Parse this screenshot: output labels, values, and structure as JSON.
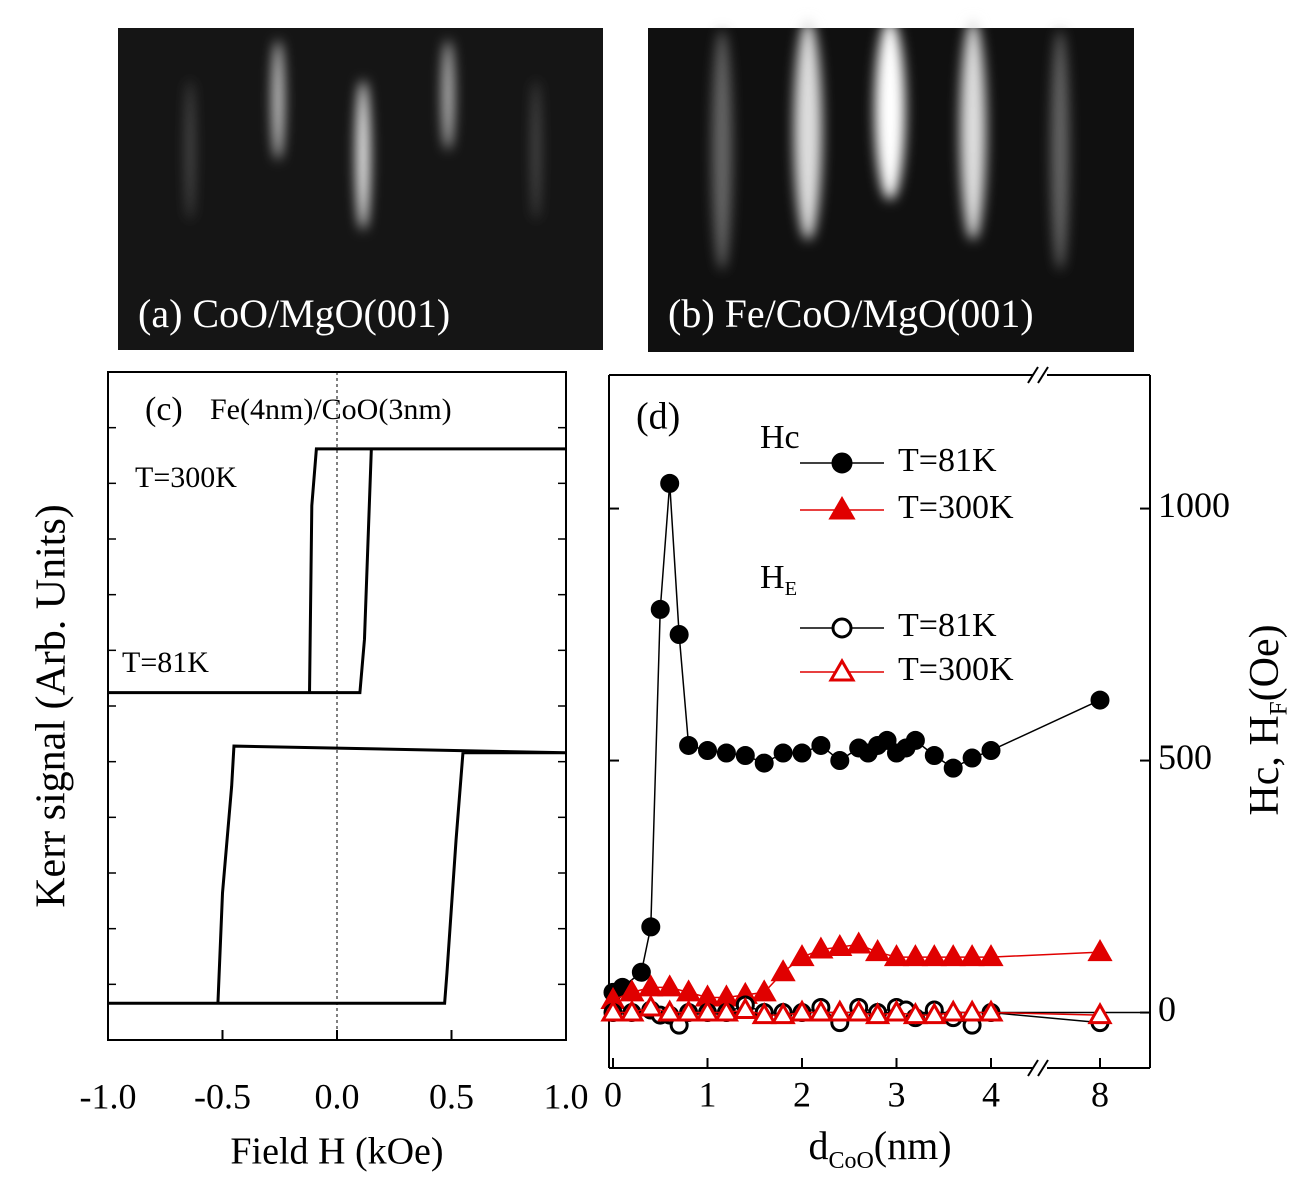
{
  "images": [
    {
      "caption": "(a) CoO/MgO(001)"
    },
    {
      "caption": "(b) Fe/CoO/MgO(001)"
    }
  ],
  "chart_data": [
    {
      "type": "line",
      "panel_label": "(c)",
      "annotations": [
        "Fe(4nm)/CoO(3nm)",
        "T=300K",
        "T=81K"
      ],
      "xlabel": "Field H (kOe)",
      "ylabel": "Kerr  signal (Arb. Units)",
      "xlim": [
        -1,
        1
      ],
      "ylim": [
        0,
        100
      ],
      "xticks": [
        {
          "value": -1,
          "label": "-1.0"
        },
        {
          "value": -0.5,
          "label": "-0.5"
        },
        {
          "value": 0,
          "label": "0.0"
        },
        {
          "value": 0.5,
          "label": "0.5"
        },
        {
          "value": 1,
          "label": "1.0"
        }
      ],
      "series": [
        {
          "color": "#000000",
          "x": [
            -1,
            0.1,
            0.12,
            0.15,
            1,
            -0.09,
            -0.11,
            -0.12,
            -1
          ],
          "values": [
            52,
            52,
            60,
            88.5,
            88.5,
            88.5,
            80,
            52,
            52
          ]
        },
        {
          "color": "#000000",
          "x": [
            -1,
            0.47,
            0.48,
            0.52,
            0.55,
            1,
            -0.45,
            -0.46,
            -0.5,
            -0.52,
            -1
          ],
          "values": [
            5.5,
            5.5,
            10,
            30,
            43,
            43,
            44,
            38,
            22,
            5.5,
            5.5
          ]
        }
      ]
    },
    {
      "type": "line",
      "panel_label": "(d)",
      "xlabel": {
        "base": "d",
        "sub": "CoO",
        "after": "(nm)"
      },
      "ylabel": {
        "base": "Hc, H",
        "sub": "F",
        "after": "(Oe)"
      },
      "legend_titles": [
        {
          "base": "Hc"
        },
        {
          "base": "H",
          "sub": "E"
        }
      ],
      "xlim": [
        0,
        8
      ],
      "ylim": [
        -110,
        1265
      ],
      "xticks": [
        0,
        1,
        2,
        3,
        4,
        8
      ],
      "yticks": [
        0,
        500,
        1000
      ],
      "series": [
        {
          "name": "T=81K",
          "color": "#000000",
          "marker": "circle",
          "filled": true,
          "x": [
            0,
            0.1,
            0.3,
            0.4,
            0.5,
            0.6,
            0.7,
            0.8,
            1.0,
            1.2,
            1.4,
            1.6,
            1.8,
            2.0,
            2.2,
            2.4,
            2.6,
            2.7,
            2.8,
            2.9,
            3.0,
            3.1,
            3.2,
            3.4,
            3.6,
            3.8,
            4.0,
            8
          ],
          "values": [
            40,
            50,
            80,
            170,
            800,
            1050,
            750,
            530,
            520,
            515,
            510,
            495,
            515,
            515,
            530,
            500,
            525,
            515,
            530,
            540,
            515,
            525,
            540,
            510,
            485,
            505,
            520,
            620
          ]
        },
        {
          "name": "T=300K",
          "color": "#e00000",
          "marker": "triangle",
          "filled": true,
          "x": [
            0,
            0.2,
            0.4,
            0.6,
            0.8,
            1.0,
            1.2,
            1.4,
            1.6,
            1.8,
            2.0,
            2.2,
            2.4,
            2.6,
            2.8,
            3.0,
            3.2,
            3.4,
            3.6,
            3.8,
            4.0,
            8
          ],
          "values": [
            25,
            40,
            50,
            50,
            40,
            30,
            30,
            35,
            40,
            80,
            110,
            125,
            130,
            135,
            120,
            110,
            110,
            110,
            110,
            110,
            110,
            120
          ]
        },
        {
          "name": "T=81K",
          "color": "#000000",
          "marker": "circle",
          "filled": false,
          "x": [
            0,
            0.2,
            0.4,
            0.5,
            0.6,
            0.7,
            0.8,
            1.0,
            1.2,
            1.4,
            1.6,
            1.8,
            2.0,
            2.2,
            2.4,
            2.6,
            2.8,
            3.0,
            3.1,
            3.2,
            3.4,
            3.6,
            3.8,
            4.0,
            8
          ],
          "values": [
            0,
            0,
            5,
            -5,
            -5,
            -25,
            0,
            0,
            0,
            15,
            0,
            0,
            0,
            10,
            -20,
            10,
            0,
            10,
            5,
            -10,
            5,
            -10,
            -25,
            0,
            -20
          ]
        },
        {
          "name": "T=300K",
          "color": "#e00000",
          "marker": "triangle",
          "filled": false,
          "x": [
            0,
            0.2,
            0.4,
            0.6,
            0.8,
            1.0,
            1.2,
            1.4,
            1.6,
            1.8,
            2.0,
            2.2,
            2.4,
            2.6,
            2.8,
            3.0,
            3.2,
            3.4,
            3.6,
            3.8,
            4.0,
            8
          ],
          "values": [
            0,
            0,
            10,
            0,
            0,
            0,
            0,
            5,
            -5,
            -5,
            0,
            0,
            0,
            0,
            -5,
            0,
            -5,
            -5,
            0,
            0,
            0,
            -5
          ]
        }
      ]
    }
  ]
}
